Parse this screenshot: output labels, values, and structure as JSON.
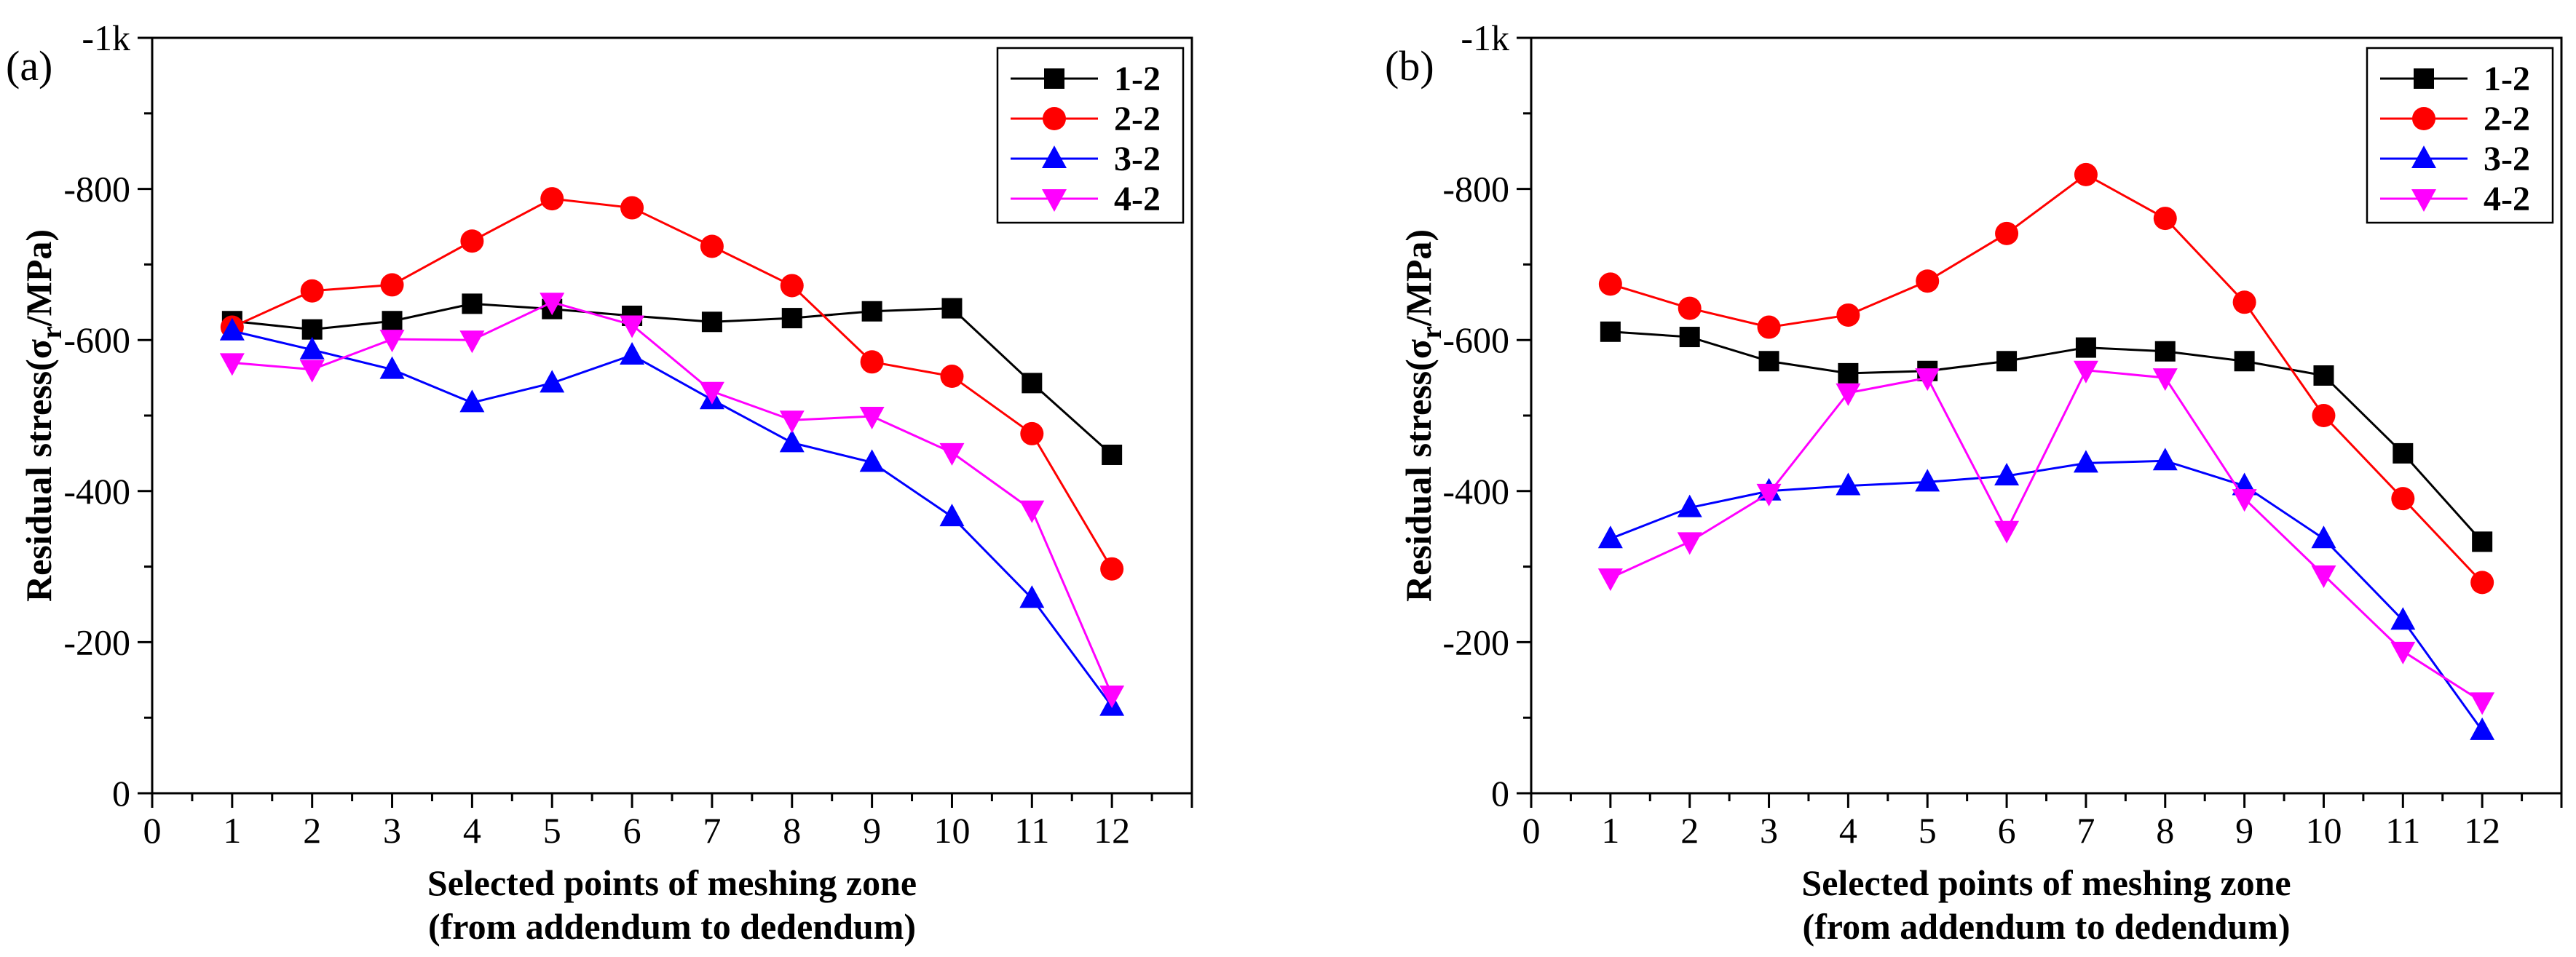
{
  "chart_data": [
    {
      "type": "line",
      "panel_label": "(a)",
      "xlabel_line1": "Selected points of meshing zone",
      "xlabel_line2": "(from addendum to dedendum)",
      "ylabel_main": "Residual stress(σ",
      "ylabel_sub": "r",
      "ylabel_tail": "/MPa)",
      "xlim": [
        0,
        13
      ],
      "ylim": [
        0,
        -1000
      ],
      "y_axis_reversed": true,
      "x_ticks": [
        0,
        1,
        2,
        3,
        4,
        5,
        6,
        7,
        8,
        9,
        10,
        11,
        12
      ],
      "y_ticks": [
        0,
        -200,
        -400,
        -600,
        -800,
        -1000
      ],
      "y_tick_labels": [
        "0",
        "-200",
        "-400",
        "-600",
        "-800",
        "-1k"
      ],
      "grid": false,
      "legend_position": "top-right",
      "x": [
        1,
        2,
        3,
        4,
        5,
        6,
        7,
        8,
        9,
        10,
        11,
        12
      ],
      "series": [
        {
          "name": "1-2",
          "color": "#000000",
          "marker": "square",
          "values": [
            -625,
            -614,
            -625,
            -648,
            -641,
            -632,
            -624,
            -629,
            -638,
            -642,
            -543,
            -448
          ]
        },
        {
          "name": "2-2",
          "color": "#ff0000",
          "marker": "circle",
          "values": [
            -617,
            -665,
            -673,
            -731,
            -787,
            -775,
            -724,
            -672,
            -571,
            -552,
            -476,
            -297
          ]
        },
        {
          "name": "3-2",
          "color": "#0000ff",
          "marker": "triangle-up",
          "values": [
            -612,
            -587,
            -561,
            -517,
            -543,
            -580,
            -521,
            -464,
            -438,
            -366,
            -258,
            -115
          ]
        },
        {
          "name": "4-2",
          "color": "#ff00ff",
          "marker": "triangle-down",
          "values": [
            -570,
            -561,
            -601,
            -600,
            -650,
            -620,
            -532,
            -494,
            -499,
            -451,
            -375,
            -130
          ]
        }
      ]
    },
    {
      "type": "line",
      "panel_label": "(b)",
      "xlabel_line1": "Selected points of meshing zone",
      "xlabel_line2": "(from addendum to dedendum)",
      "ylabel_main": "Residual stress(σ",
      "ylabel_sub": "r",
      "ylabel_tail": "/MPa)",
      "xlim": [
        0,
        13
      ],
      "ylim": [
        0,
        -1000
      ],
      "y_axis_reversed": true,
      "x_ticks": [
        0,
        1,
        2,
        3,
        4,
        5,
        6,
        7,
        8,
        9,
        10,
        11,
        12
      ],
      "y_ticks": [
        0,
        -200,
        -400,
        -600,
        -800,
        -1000
      ],
      "y_tick_labels": [
        "0",
        "-200",
        "-400",
        "-600",
        "-800",
        "-1k"
      ],
      "grid": false,
      "legend_position": "top-right",
      "x": [
        1,
        2,
        3,
        4,
        5,
        6,
        7,
        8,
        9,
        10,
        11,
        12
      ],
      "series": [
        {
          "name": "1-2",
          "color": "#000000",
          "marker": "square",
          "values": [
            -611,
            -604,
            -572,
            -556,
            -559,
            -572,
            -590,
            -585,
            -572,
            -553,
            -450,
            -333
          ]
        },
        {
          "name": "2-2",
          "color": "#ff0000",
          "marker": "circle",
          "values": [
            -674,
            -642,
            -617,
            -633,
            -678,
            -741,
            -819,
            -761,
            -650,
            -500,
            -390,
            -279
          ]
        },
        {
          "name": "3-2",
          "color": "#0000ff",
          "marker": "triangle-up",
          "values": [
            -337,
            -378,
            -400,
            -407,
            -412,
            -420,
            -437,
            -440,
            -407,
            -337,
            -229,
            -83
          ]
        },
        {
          "name": "4-2",
          "color": "#ff00ff",
          "marker": "triangle-down",
          "values": [
            -285,
            -333,
            -397,
            -530,
            -550,
            -348,
            -560,
            -550,
            -390,
            -289,
            -188,
            -121
          ]
        }
      ]
    }
  ]
}
